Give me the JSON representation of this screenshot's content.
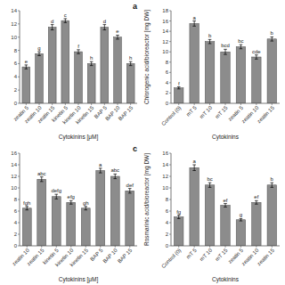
{
  "chart_data": [
    {
      "type": "bar",
      "title": "a",
      "categories": [
        "zeatin 5",
        "zeatin 10",
        "zeatin 15",
        "kinetin 5",
        "kinetin 10",
        "kinetin 15",
        "BAP 5",
        "BAP 10",
        "BAP 15"
      ],
      "values": [
        5.5,
        7.5,
        11.5,
        12.5,
        7.8,
        6.0,
        11.5,
        10.0,
        6.0
      ],
      "errors": [
        0.3,
        0.3,
        0.4,
        0.3,
        0.3,
        0.3,
        0.4,
        0.3,
        0.3
      ],
      "letters": [
        "e",
        "g",
        "d",
        "c",
        "f",
        "h",
        "d",
        "e",
        "h"
      ],
      "xlabel": "Cytokinins [μM]",
      "ylim": [
        0,
        14
      ],
      "yticks": [
        0,
        2,
        4,
        6,
        8,
        10,
        12,
        14
      ],
      "color": "#8c8c8c",
      "grid": false
    },
    {
      "type": "bar",
      "categories": [
        "Control (0)",
        "mT 5",
        "mT 10",
        "mT 15",
        "zeatin 5",
        "zeatin 10",
        "zeatin 15"
      ],
      "values": [
        3.0,
        15.5,
        12.0,
        10.0,
        11.0,
        9.0,
        12.5
      ],
      "errors": [
        0.2,
        0.5,
        0.4,
        0.5,
        0.4,
        0.4,
        0.4
      ],
      "letters": [
        "f",
        "a",
        "b",
        "bcd",
        "bc",
        "cde",
        "b"
      ],
      "xlabel": "Cytokinins",
      "ylabel": "Chlorogenic acid/bioreactor [mg DW]",
      "ylim": [
        0,
        18
      ],
      "yticks": [
        0,
        2,
        4,
        6,
        8,
        10,
        12,
        14,
        16,
        18
      ],
      "color": "#8c8c8c",
      "grid": false
    },
    {
      "type": "bar",
      "title": "c",
      "categories": [
        "zeatin 10",
        "zeatin 15",
        "kinetin 5",
        "kinetin 10",
        "kinetin 15",
        "BAP 5",
        "BAP 10",
        "BAP 15"
      ],
      "values": [
        6.5,
        11.5,
        8.5,
        7.5,
        6.5,
        13.0,
        12.0,
        9.5
      ],
      "errors": [
        0.3,
        0.4,
        0.4,
        0.3,
        0.3,
        0.4,
        0.4,
        0.4
      ],
      "letters": [
        "fgh",
        "abc",
        "defg",
        "efg",
        "gh",
        "a",
        "abc",
        "def"
      ],
      "xlabel": "Cytokinins [μM]",
      "ylim": [
        0,
        16
      ],
      "yticks": [
        0,
        2,
        4,
        6,
        8,
        10,
        12,
        14,
        16
      ],
      "color": "#8c8c8c",
      "grid": false
    },
    {
      "type": "bar",
      "categories": [
        "Control (0)",
        "mT 5",
        "mT 10",
        "mT 15",
        "zeatin 5",
        "zeatin 10",
        "zeatin 15"
      ],
      "values": [
        5.0,
        13.5,
        10.5,
        7.0,
        4.5,
        7.5,
        10.5
      ],
      "errors": [
        0.3,
        0.5,
        0.4,
        0.3,
        0.2,
        0.3,
        0.4
      ],
      "letters": [
        "fg",
        "a",
        "bc",
        "ef",
        "g",
        "ef",
        "b"
      ],
      "xlabel": "Cytokinins",
      "ylabel": "Rosmarinic acid/bioreactor [mg DW]",
      "ylim": [
        0,
        16
      ],
      "yticks": [
        0,
        2,
        4,
        6,
        8,
        10,
        12,
        14,
        16
      ],
      "color": "#8c8c8c",
      "grid": false
    }
  ]
}
